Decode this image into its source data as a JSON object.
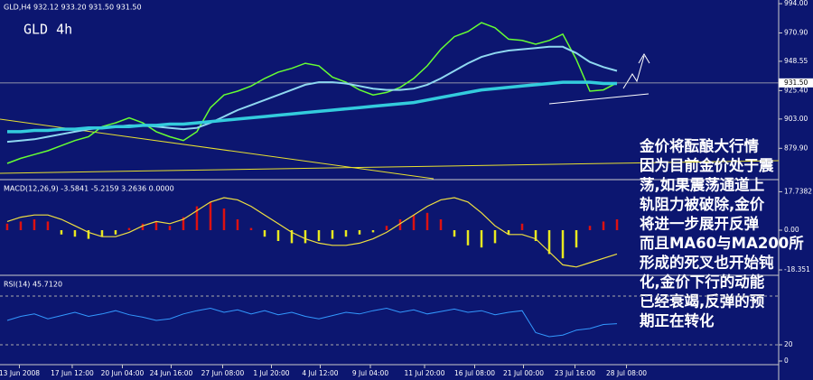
{
  "chart_data": [
    {
      "type": "line",
      "title": "GLD,H4  932.12 933.20 931.50 931.50",
      "label": "GLD 4h",
      "xlim": [
        -0.53,
        56.93
      ],
      "ylim": [
        855.9,
        996.9
      ],
      "yticks": [
        {
          "value": 994,
          "label": "994.00"
        },
        {
          "value": 970.9,
          "label": "970.90"
        },
        {
          "value": 948.55,
          "label": "948.55"
        },
        {
          "value": 925.4,
          "label": "925.40"
        },
        {
          "value": 903,
          "label": "903.00"
        },
        {
          "value": 879.9,
          "label": "879.90"
        }
      ],
      "current_price": {
        "value": 931.5,
        "label": "931.50"
      },
      "series": [
        {
          "color": "#66ff33",
          "width": 1.5,
          "values": [
            868,
            872,
            875,
            878,
            882,
            886,
            889,
            897,
            900,
            904,
            900,
            893,
            889,
            886,
            893,
            912,
            922,
            925,
            929,
            935,
            940,
            943,
            947,
            945,
            936,
            932,
            926,
            922,
            924,
            928,
            935,
            945,
            958,
            968,
            972,
            979,
            975,
            966,
            965,
            962,
            965,
            970,
            950,
            925,
            926,
            931.5
          ]
        },
        {
          "color": "#8fd8f0",
          "width": 2,
          "values": [
            885,
            886,
            887,
            889,
            891,
            893,
            895,
            896,
            897,
            898,
            898,
            897,
            896,
            895,
            896,
            900,
            905,
            910,
            914,
            918,
            922,
            926,
            930,
            932,
            932,
            931,
            929,
            927,
            926,
            926,
            927,
            930,
            935,
            941,
            947,
            952,
            955,
            957,
            958,
            959,
            960,
            960,
            955,
            948,
            944,
            941
          ]
        },
        {
          "color": "#33ccdd",
          "width": 3.5,
          "values": [
            893,
            893,
            894,
            894,
            895,
            895,
            896,
            896,
            897,
            897,
            898,
            898,
            899,
            899,
            900,
            901,
            902,
            903,
            904,
            905,
            906,
            907,
            908,
            909,
            910,
            911,
            912,
            913,
            914,
            915,
            916,
            918,
            920,
            922,
            924,
            926,
            927,
            928,
            929,
            930,
            931,
            932,
            932,
            932,
            931,
            931
          ]
        }
      ],
      "annotation": [
        "金价将酝酿大行情",
        "因为目前金价处于震",
        "荡,如果震荡通道上",
        "轨阻力被破除,金价",
        "将进一步展开反弹",
        "而且MA60与MA200所",
        "形成的死叉也开始钝",
        "化,金价下行的动能",
        "已经衰竭,反弹的预",
        "期正在转化"
      ]
    },
    {
      "type": "bar",
      "title": "MACD(12,26,9) -3.5841 -5.2159 3.2636 0.0000",
      "xlim": [
        -0.53,
        56.93
      ],
      "ylim": [
        -20,
        22.5
      ],
      "yticks": [
        {
          "value": 17.7382,
          "label": "17.7382"
        },
        {
          "value": 0,
          "label": "0.00"
        },
        {
          "value": -18.351,
          "label": "-18.351"
        }
      ],
      "positive_color": "#dd1111",
      "negative_color": "#e8e820",
      "values": [
        3,
        4,
        5,
        4,
        -2,
        -3,
        -4,
        -3,
        -2,
        1,
        3,
        4,
        2,
        6,
        11,
        13,
        10,
        5,
        1,
        -3,
        -5,
        -6,
        -6,
        -5,
        -4,
        -3,
        -2,
        -1,
        2,
        5,
        7,
        8,
        5,
        -3,
        -7,
        -8,
        -6,
        -2,
        3,
        -5,
        -11,
        -13,
        -8,
        2,
        4,
        5
      ],
      "series": [
        {
          "color": "#f0e040",
          "width": 1.2,
          "values": [
            4,
            6,
            7,
            7,
            5,
            2,
            -1,
            -3,
            -3,
            -1,
            2,
            4,
            3,
            5,
            9,
            13,
            15,
            14,
            11,
            7,
            3,
            -1,
            -4,
            -6,
            -7,
            -7,
            -6,
            -4,
            -1,
            3,
            7,
            11,
            14,
            15,
            13,
            8,
            2,
            -2,
            -2,
            -4,
            -10,
            -16,
            -17,
            -15,
            -13,
            -11
          ]
        }
      ]
    },
    {
      "type": "line",
      "title": "RSI(14) 45.7120",
      "xlim": [
        -0.53,
        56.93
      ],
      "ylim": [
        0,
        100
      ],
      "yticks": [
        20,
        0
      ],
      "levels": [
        80,
        20
      ],
      "series": [
        {
          "color": "#3399ff",
          "width": 1,
          "values": [
            50,
            55,
            58,
            52,
            56,
            60,
            55,
            58,
            62,
            57,
            54,
            50,
            52,
            58,
            62,
            65,
            60,
            63,
            58,
            62,
            57,
            60,
            55,
            52,
            56,
            60,
            58,
            62,
            65,
            60,
            63,
            58,
            61,
            64,
            60,
            62,
            57,
            60,
            62,
            35,
            30,
            32,
            38,
            40,
            45,
            46
          ]
        }
      ],
      "xticks": [
        {
          "value": 0.9,
          "label": "13 Jun 2008"
        },
        {
          "value": 4.8,
          "label": "17 Jun 12:00"
        },
        {
          "value": 8.5,
          "label": "20 Jun 04:00"
        },
        {
          "value": 12.1,
          "label": "24 Jun 16:00"
        },
        {
          "value": 15.9,
          "label": "27 Jun 08:00"
        },
        {
          "value": 19.5,
          "label": "1 Jul 20:00"
        },
        {
          "value": 23.1,
          "label": "4 Jul 12:00"
        },
        {
          "value": 26.8,
          "label": "9 Jul 04:00"
        },
        {
          "value": 30.8,
          "label": "11 Jul 20:00"
        },
        {
          "value": 34.5,
          "label": "16 Jul 08:00"
        },
        {
          "value": 38.1,
          "label": "21 Jul 00:00"
        },
        {
          "value": 41.9,
          "label": "23 Jul 16:00"
        },
        {
          "value": 45.7,
          "label": "28 Jul 08:00"
        }
      ]
    }
  ]
}
